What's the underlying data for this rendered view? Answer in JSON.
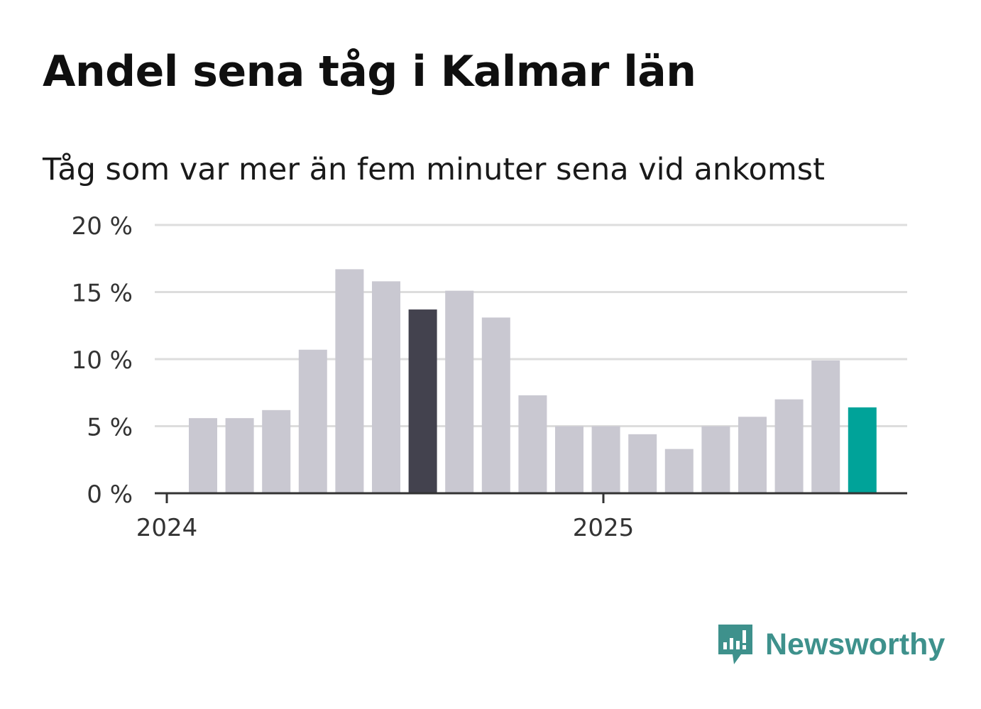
{
  "header": {
    "title": "Andel sena tåg i Kalmar län",
    "subtitle": "Tåg som var mer än fem minuter sena vid ankomst"
  },
  "brand": {
    "name": "Newsworthy",
    "icon": "newsworthy-logo-icon",
    "color": "#3e918c"
  },
  "chart_data": {
    "type": "bar",
    "title": "Andel sena tåg i Kalmar län",
    "subtitle": "Tåg som var mer än fem minuter sena vid ankomst",
    "x_tick_labels": [
      "2024",
      "2025"
    ],
    "x_tick_positions": [
      0,
      12
    ],
    "y_ticks": [
      0,
      5,
      10,
      15,
      20
    ],
    "y_tick_labels": [
      "0 %",
      "5 %",
      "10 %",
      "15 %",
      "20 %"
    ],
    "ylim": [
      0,
      20
    ],
    "grid": true,
    "values": [
      5.6,
      5.6,
      6.2,
      10.7,
      16.7,
      15.8,
      13.7,
      15.1,
      13.1,
      7.3,
      5.0,
      5.0,
      4.4,
      3.3,
      5.0,
      5.7,
      7.0,
      9.9,
      6.4
    ],
    "colors": {
      "default": "#c9c8d1",
      "highlight": "#43424e",
      "latest": "#00a399",
      "grid": "#dddddd",
      "axis": "#333333"
    },
    "highlight_index": 6,
    "latest_index": 18
  }
}
